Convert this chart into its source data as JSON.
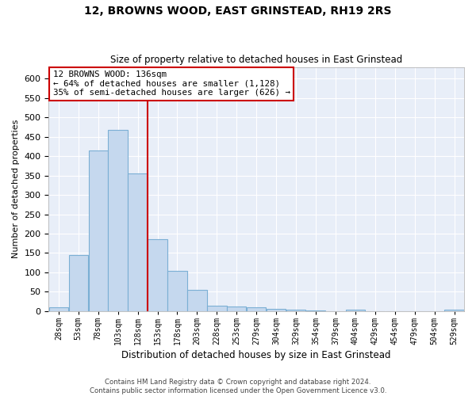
{
  "title": "12, BROWNS WOOD, EAST GRINSTEAD, RH19 2RS",
  "subtitle": "Size of property relative to detached houses in East Grinstead",
  "xlabel": "Distribution of detached houses by size in East Grinstead",
  "ylabel": "Number of detached properties",
  "footer1": "Contains HM Land Registry data © Crown copyright and database right 2024.",
  "footer2": "Contains public sector information licensed under the Open Government Licence v3.0.",
  "annotation_title": "12 BROWNS WOOD: 136sqm",
  "annotation_line1": "← 64% of detached houses are smaller (1,128)",
  "annotation_line2": "35% of semi-detached houses are larger (626) →",
  "bar_color": "#c5d8ee",
  "bar_edge_color": "#7bafd4",
  "vline_color": "#cc0000",
  "annotation_box_color": "#cc0000",
  "background_color": "#e8eef8",
  "categories": [
    "28sqm",
    "53sqm",
    "78sqm",
    "103sqm",
    "128sqm",
    "153sqm",
    "178sqm",
    "203sqm",
    "228sqm",
    "253sqm",
    "279sqm",
    "304sqm",
    "329sqm",
    "354sqm",
    "379sqm",
    "404sqm",
    "429sqm",
    "454sqm",
    "479sqm",
    "504sqm",
    "529sqm"
  ],
  "values": [
    10,
    145,
    415,
    468,
    355,
    185,
    103,
    54,
    15,
    12,
    10,
    5,
    3,
    2,
    0,
    3,
    0,
    0,
    0,
    0,
    4
  ],
  "vline_position": 4.5,
  "ylim": [
    0,
    630
  ],
  "yticks": [
    0,
    50,
    100,
    150,
    200,
    250,
    300,
    350,
    400,
    450,
    500,
    550,
    600
  ],
  "figsize": [
    6.0,
    5.0
  ],
  "dpi": 100
}
